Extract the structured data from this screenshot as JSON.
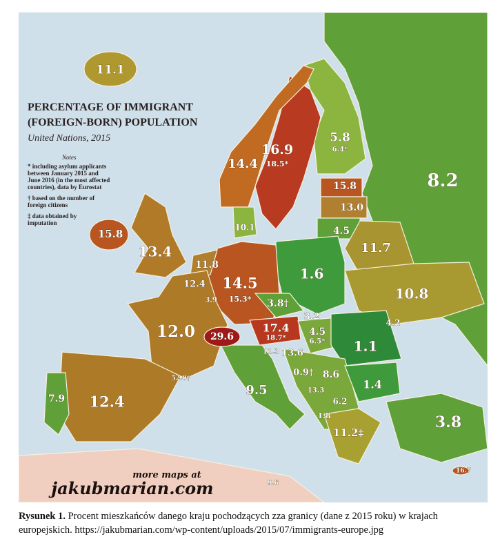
{
  "map": {
    "title": [
      "PERCENTAGE OF IMMIGRANT",
      "(FOREIGN-BORN) POPULATION"
    ],
    "subtitle": "United Nations, 2015",
    "notes_heading": "Notes",
    "notes": [
      [
        "* including asylum applicants",
        "between January 2015 and",
        "June 2016 (in the most affected",
        "countries), data by Eurostat"
      ],
      [
        "† based on the number of",
        "foreign citizens"
      ],
      [
        "‡ data obtained by",
        "imputation"
      ]
    ],
    "labels": [
      "11.1",
      "14.4",
      "16.9",
      "18.5*",
      "5.8",
      "6.4*",
      "8.2",
      "15.8",
      "13.0",
      "4.5",
      "11.7",
      "10.1",
      "15.8",
      "13.4",
      "11.8",
      "12.4",
      "3.9",
      "14.5",
      "15.3*",
      "1.6",
      "10.8",
      "3.8†",
      "3.2",
      "4.2",
      "12.0",
      "29.6",
      "17.4",
      "18.7*",
      "4.5",
      "6.5*",
      "1.1",
      "11.3",
      "13.6",
      "0.9†",
      "8.6",
      "1.4",
      "13.3",
      "6.2",
      "1.8",
      "9.5",
      "52.0†",
      "7.9",
      "12.4",
      "11.2‡",
      "3.8",
      "16.7",
      "9.6"
    ],
    "watermark": [
      "more maps at",
      "jakubmarian.com"
    ]
  },
  "caption": {
    "label": "Rysunek 1.",
    "text": "Procent mieszkańców danego kraju pochodzących zza granicy (dane z 2015 roku) w krajach europejskich. https://jakubmarian.com/wp-content/uploads/2015/07/immigrants-europe.jpg"
  }
}
